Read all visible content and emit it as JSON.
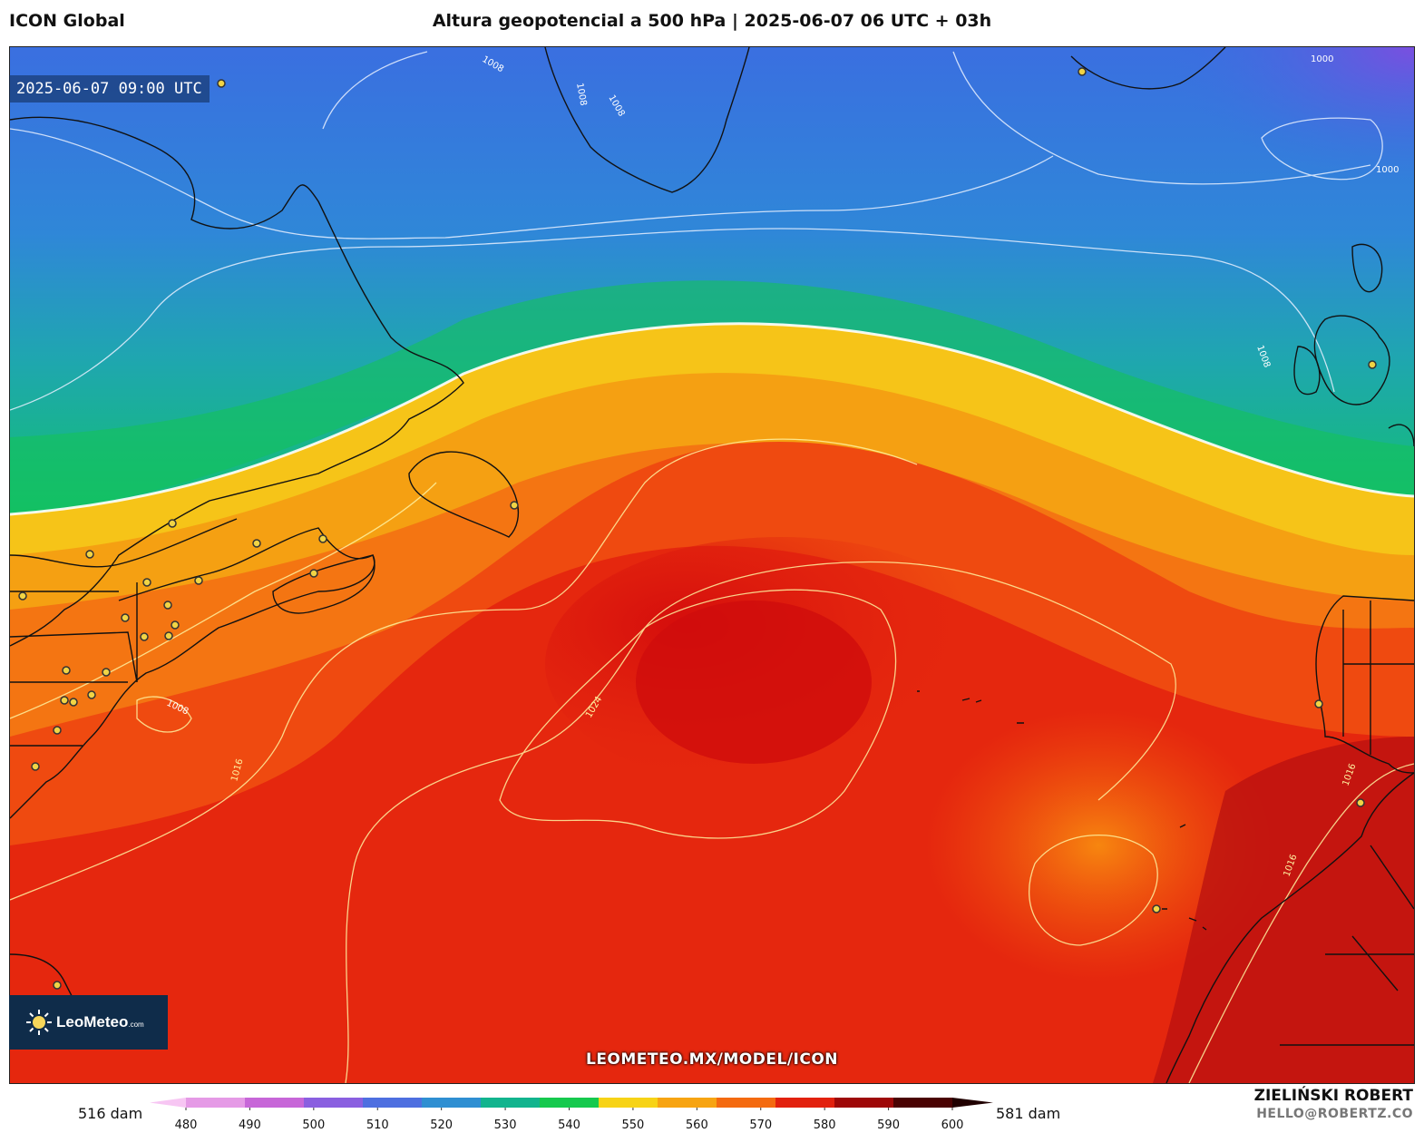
{
  "header": {
    "model": "ICON Global",
    "title": "Altura geopotencial a 500 hPa | 2025-06-07 06 UTC + 03h"
  },
  "map": {
    "valid_time": "2025-06-07 09:00 UTC",
    "watermark": "LEOMETEO.MX/MODEL/ICON",
    "isobar_labels": [
      "1008",
      "1008",
      "1008",
      "1000",
      "1000",
      "1008",
      "1008",
      "1024",
      "1016",
      "1016",
      "1016"
    ]
  },
  "logo": {
    "name": "LeoMeteo",
    "suffix": ".com"
  },
  "footer": {
    "author": "ZIELIŃSKI ROBERT",
    "email": "HELLO@ROBERTZ.CO"
  },
  "legend": {
    "min_label": "516 dam",
    "max_label": "581 dam",
    "ticks": [
      "480",
      "490",
      "500",
      "510",
      "520",
      "530",
      "540",
      "550",
      "560",
      "570",
      "580",
      "590",
      "600"
    ],
    "colors": [
      "#f7c6f3",
      "#e59ae6",
      "#c766d8",
      "#8a5fe0",
      "#4e6fe0",
      "#2f8fd2",
      "#12b48e",
      "#16c94e",
      "#f7d316",
      "#f7a412",
      "#f46a10",
      "#e2210e",
      "#9e0808",
      "#4a0202",
      "#200000"
    ]
  }
}
